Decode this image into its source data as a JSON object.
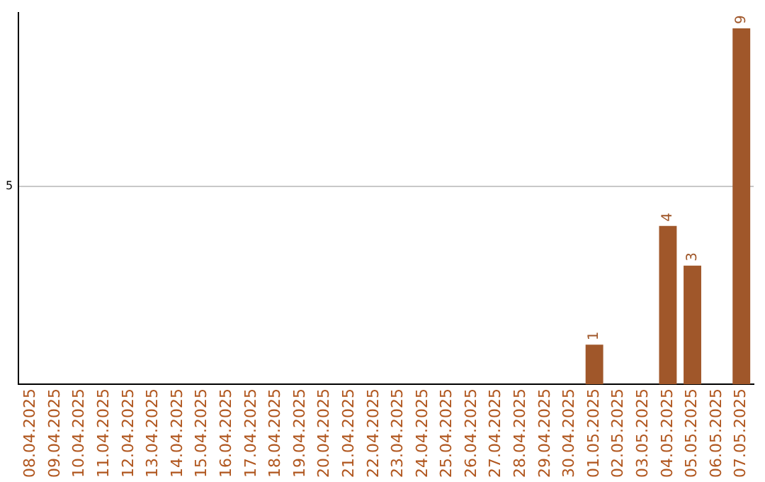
{
  "chart_data": {
    "type": "bar",
    "categories": [
      "08.04.2025",
      "09.04.2025",
      "10.04.2025",
      "11.04.2025",
      "12.04.2025",
      "13.04.2025",
      "14.04.2025",
      "15.04.2025",
      "16.04.2025",
      "17.04.2025",
      "18.04.2025",
      "19.04.2025",
      "20.04.2025",
      "21.04.2025",
      "22.04.2025",
      "23.04.2025",
      "24.04.2025",
      "25.04.2025",
      "26.04.2025",
      "27.04.2025",
      "28.04.2025",
      "29.04.2025",
      "30.04.2025",
      "01.05.2025",
      "02.05.2025",
      "03.05.2025",
      "04.05.2025",
      "05.05.2025",
      "06.05.2025",
      "07.05.2025"
    ],
    "values": [
      null,
      null,
      null,
      null,
      null,
      null,
      null,
      null,
      null,
      null,
      null,
      null,
      null,
      null,
      null,
      null,
      null,
      null,
      null,
      null,
      null,
      null,
      null,
      1,
      null,
      null,
      4,
      3,
      null,
      9
    ],
    "data_labels": true,
    "color": "#a0572a",
    "ylim": [
      0,
      9.4
    ],
    "yticks": [
      5
    ],
    "grid": "y",
    "legend": false
  }
}
